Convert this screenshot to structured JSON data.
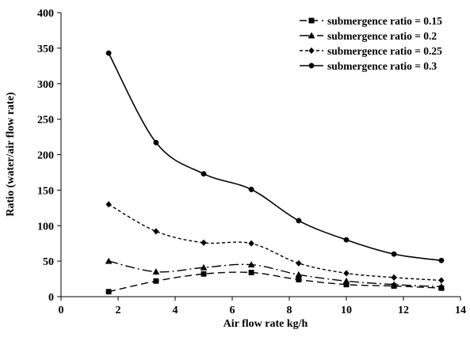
{
  "chart_data": {
    "type": "line",
    "title": "",
    "xlabel": "Air flow rate   kg/h",
    "ylabel": "Ratio (water/air flow rate)",
    "xlim": [
      0,
      14
    ],
    "ylim": [
      0,
      400
    ],
    "xticks": [
      0,
      2,
      4,
      6,
      8,
      10,
      12,
      14
    ],
    "yticks": [
      0,
      50,
      100,
      150,
      200,
      250,
      300,
      350,
      400
    ],
    "grid": false,
    "smooth": true,
    "legend_position": "top-right",
    "series": [
      {
        "name": "submergence ratio = 0.15",
        "marker": "square",
        "dash": "long-dash",
        "color": "#000000",
        "x": [
          1.67,
          3.33,
          5.0,
          6.67,
          8.33,
          10.0,
          11.67,
          13.33
        ],
        "y": [
          7,
          22,
          32,
          34,
          24,
          17,
          15,
          12
        ]
      },
      {
        "name": "submergence ratio = 0.2",
        "marker": "triangle",
        "dash": "dash-dot",
        "color": "#000000",
        "x": [
          1.67,
          3.33,
          5.0,
          6.67,
          8.33,
          10.0,
          11.67,
          13.33
        ],
        "y": [
          50,
          35,
          41,
          45,
          31,
          22,
          17,
          14
        ]
      },
      {
        "name": "submergence ratio = 0.25",
        "marker": "diamond",
        "dash": "short-dash",
        "color": "#000000",
        "x": [
          1.67,
          3.33,
          5.0,
          6.67,
          8.33,
          10.0,
          11.67,
          13.33
        ],
        "y": [
          130,
          92,
          76,
          75,
          47,
          33,
          27,
          23
        ]
      },
      {
        "name": "submergence ratio = 0.3",
        "marker": "circle",
        "dash": "solid",
        "color": "#000000",
        "x": [
          1.67,
          3.33,
          5.0,
          6.67,
          8.33,
          10.0,
          11.67,
          13.33
        ],
        "y": [
          343,
          217,
          173,
          151,
          107,
          80,
          60,
          51
        ]
      }
    ]
  }
}
